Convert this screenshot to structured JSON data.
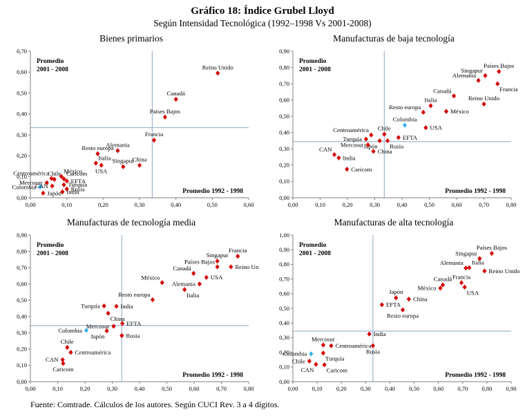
{
  "page": {
    "title": "Gráfico 18: Índice Grubel Lloyd",
    "subtitle": "Según Intensidad Tecnológica (1992–1998 Vs 2001-2008)",
    "footer": "Fuente: Comtrade. Cálculos de los autores. Según CUCI Rev. 3 a 4 dígitos."
  },
  "colors": {
    "point": "#d40000",
    "highlight_point": "#31b2e8",
    "refline": "#9fb4cc",
    "axis": "#7f7f7f",
    "text": "#000000"
  },
  "chart_data": [
    {
      "type": "scatter",
      "title": "Bienes primarios",
      "xlabel": "Promedio 1992 - 1998",
      "ylabel": "Promedio 2001 - 2008",
      "xlim": [
        0,
        0.6
      ],
      "ylim": [
        0,
        0.7
      ],
      "xtick_labels": [
        "0,00",
        "0,10",
        "0,20",
        "0,30",
        "0,40",
        "0,50",
        "0,60"
      ],
      "ytick_labels": [
        "0,00",
        "0,10",
        "0,20",
        "0,30",
        "0,40",
        "0,50",
        "0,60",
        "0,70"
      ],
      "refline_x": 0.335,
      "refline_y": 0.335,
      "legend": "none",
      "grid": false,
      "points": [
        {
          "name": "Reino Unido",
          "x": 0.515,
          "y": 0.595,
          "label_pos": "top"
        },
        {
          "name": "Canadá",
          "x": 0.4,
          "y": 0.47,
          "label_pos": "top"
        },
        {
          "name": "Países Bajos",
          "x": 0.37,
          "y": 0.385,
          "label_pos": "top"
        },
        {
          "name": "Francia",
          "x": 0.34,
          "y": 0.275,
          "label_pos": "top"
        },
        {
          "name": "Alemania",
          "x": 0.24,
          "y": 0.225,
          "label_pos": "top"
        },
        {
          "name": "Resto europa",
          "x": 0.185,
          "y": 0.21,
          "label_pos": "top"
        },
        {
          "name": "Italia",
          "x": 0.18,
          "y": 0.165,
          "label_pos": "top-right"
        },
        {
          "name": "USA",
          "x": 0.195,
          "y": 0.155,
          "label_pos": "bottom"
        },
        {
          "name": "Singapur",
          "x": 0.255,
          "y": 0.148,
          "label_pos": "top"
        },
        {
          "name": "China",
          "x": 0.3,
          "y": 0.155,
          "label_pos": "top"
        },
        {
          "name": "México",
          "x": 0.085,
          "y": 0.102,
          "label_pos": "top-right"
        },
        {
          "name": "Centroamérica",
          "x": 0.058,
          "y": 0.092,
          "label_pos": "top-left"
        },
        {
          "name": "Chile",
          "x": 0.066,
          "y": 0.088,
          "label_pos": "top"
        },
        {
          "name": "Caricom",
          "x": 0.092,
          "y": 0.09,
          "label_pos": "top-right"
        },
        {
          "name": "Mercosur",
          "x": 0.045,
          "y": 0.072,
          "label_pos": "left"
        },
        {
          "name": "EFTA",
          "x": 0.1,
          "y": 0.08,
          "label_pos": "right"
        },
        {
          "name": "Colombia",
          "x": 0.027,
          "y": 0.052,
          "label_pos": "left",
          "highlight": true
        },
        {
          "name": "CAN",
          "x": 0.06,
          "y": 0.056,
          "label_pos": "left"
        },
        {
          "name": "Turquía",
          "x": 0.092,
          "y": 0.062,
          "label_pos": "right"
        },
        {
          "name": "Rusia",
          "x": 0.1,
          "y": 0.042,
          "label_pos": "right"
        },
        {
          "name": "Japón",
          "x": 0.035,
          "y": 0.022,
          "label_pos": "right"
        },
        {
          "name": "India",
          "x": 0.088,
          "y": 0.028,
          "label_pos": "right"
        }
      ]
    },
    {
      "type": "scatter",
      "title": "Manufacturas de baja tecnología",
      "xlabel": "Promedio 1992 - 1998",
      "ylabel": "Promedio 2001 - 2008",
      "xlim": [
        0,
        0.8
      ],
      "ylim": [
        0,
        0.9
      ],
      "xtick_labels": [
        "0,00",
        "0,10",
        "0,20",
        "0,30",
        "0,40",
        "0,50",
        "0,60",
        "0,70",
        "0,80"
      ],
      "ytick_labels": [
        "0,00",
        "0,10",
        "0,20",
        "0,30",
        "0,40",
        "0,50",
        "0,60",
        "0,70",
        "0,80",
        "0,90"
      ],
      "refline_x": 0.335,
      "refline_y": 0.345,
      "legend": "none",
      "grid": false,
      "points": [
        {
          "name": "Países Bajos",
          "x": 0.755,
          "y": 0.775,
          "label_pos": "top"
        },
        {
          "name": "Singapur",
          "x": 0.705,
          "y": 0.75,
          "label_pos": "top-left"
        },
        {
          "name": "Alemania",
          "x": 0.68,
          "y": 0.72,
          "label_pos": "top-left"
        },
        {
          "name": "Francia",
          "x": 0.75,
          "y": 0.7,
          "label_pos": "bottom-right"
        },
        {
          "name": "Canadá",
          "x": 0.59,
          "y": 0.625,
          "label_pos": "top-left"
        },
        {
          "name": "Reino Unido",
          "x": 0.7,
          "y": 0.575,
          "label_pos": "top"
        },
        {
          "name": "Italia",
          "x": 0.505,
          "y": 0.565,
          "label_pos": "top"
        },
        {
          "name": "Resto europa",
          "x": 0.478,
          "y": 0.525,
          "label_pos": "top-left"
        },
        {
          "name": "México",
          "x": 0.562,
          "y": 0.53,
          "label_pos": "right"
        },
        {
          "name": "Colombia",
          "x": 0.41,
          "y": 0.445,
          "label_pos": "top",
          "highlight": true
        },
        {
          "name": "USA",
          "x": 0.487,
          "y": 0.43,
          "label_pos": "right"
        },
        {
          "name": "Chile",
          "x": 0.335,
          "y": 0.39,
          "label_pos": "top"
        },
        {
          "name": "EFTA",
          "x": 0.387,
          "y": 0.37,
          "label_pos": "right"
        },
        {
          "name": "Centroamérica",
          "x": 0.287,
          "y": 0.385,
          "label_pos": "top-left"
        },
        {
          "name": "Turquía",
          "x": 0.268,
          "y": 0.36,
          "label_pos": "left"
        },
        {
          "name": "Japón",
          "x": 0.318,
          "y": 0.35,
          "label_pos": "bottom-left"
        },
        {
          "name": "Rusia",
          "x": 0.347,
          "y": 0.35,
          "label_pos": "bottom-right"
        },
        {
          "name": "Mercosur",
          "x": 0.275,
          "y": 0.325,
          "label_pos": "left"
        },
        {
          "name": "China",
          "x": 0.295,
          "y": 0.285,
          "label_pos": "right"
        },
        {
          "name": "CAN",
          "x": 0.152,
          "y": 0.265,
          "label_pos": "top-left"
        },
        {
          "name": "India",
          "x": 0.168,
          "y": 0.245,
          "label_pos": "right"
        },
        {
          "name": "Caricom",
          "x": 0.198,
          "y": 0.175,
          "label_pos": "right"
        }
      ]
    },
    {
      "type": "scatter",
      "title": "Manufacturas de tecnología media",
      "xlabel": "Promedio 1992 - 1998",
      "ylabel": "Promedio 2001 - 2008",
      "xlim": [
        0,
        0.8
      ],
      "ylim": [
        0,
        0.9
      ],
      "xtick_labels": [
        "0,00",
        "0,10",
        "0,20",
        "0,30",
        "0,40",
        "0,50",
        "0,60",
        "0,70",
        "0,80"
      ],
      "ytick_labels": [
        "0,00",
        "0,10",
        "0,20",
        "0,30",
        "0,40",
        "0,50",
        "0,60",
        "0,70",
        "0,80",
        "0,90"
      ],
      "refline_x": 0.335,
      "refline_y": 0.345,
      "legend": "none",
      "grid": false,
      "points": [
        {
          "name": "Francia",
          "x": 0.76,
          "y": 0.77,
          "label_pos": "top"
        },
        {
          "name": "Singapur",
          "x": 0.685,
          "y": 0.74,
          "label_pos": "top"
        },
        {
          "name": "Países Bajos",
          "x": 0.685,
          "y": 0.705,
          "label_pos": "top-left"
        },
        {
          "name": "Reino Unido",
          "x": 0.735,
          "y": 0.705,
          "label_pos": "right"
        },
        {
          "name": "Canadá",
          "x": 0.598,
          "y": 0.665,
          "label_pos": "top-left"
        },
        {
          "name": "USA",
          "x": 0.645,
          "y": 0.64,
          "label_pos": "right"
        },
        {
          "name": "México",
          "x": 0.483,
          "y": 0.608,
          "label_pos": "top-left"
        },
        {
          "name": "Alemania",
          "x": 0.62,
          "y": 0.6,
          "label_pos": "left"
        },
        {
          "name": "Italia",
          "x": 0.565,
          "y": 0.565,
          "label_pos": "bottom-right"
        },
        {
          "name": "Resto europa",
          "x": 0.448,
          "y": 0.503,
          "label_pos": "top-left"
        },
        {
          "name": "Turquía",
          "x": 0.27,
          "y": 0.465,
          "label_pos": "left"
        },
        {
          "name": "India",
          "x": 0.315,
          "y": 0.463,
          "label_pos": "right"
        },
        {
          "name": "China",
          "x": 0.285,
          "y": 0.42,
          "label_pos": "bottom-right"
        },
        {
          "name": "EFTA",
          "x": 0.337,
          "y": 0.357,
          "label_pos": "right"
        },
        {
          "name": "Mercosur",
          "x": 0.305,
          "y": 0.34,
          "label_pos": "left"
        },
        {
          "name": "Colombia",
          "x": 0.205,
          "y": 0.315,
          "label_pos": "left",
          "highlight": true
        },
        {
          "name": "Japón",
          "x": 0.28,
          "y": 0.312,
          "label_pos": "bottom-left"
        },
        {
          "name": "Rusia",
          "x": 0.335,
          "y": 0.283,
          "label_pos": "right"
        },
        {
          "name": "Chile",
          "x": 0.135,
          "y": 0.21,
          "label_pos": "top"
        },
        {
          "name": "Centroamérica",
          "x": 0.148,
          "y": 0.18,
          "label_pos": "right"
        },
        {
          "name": "CAN",
          "x": 0.118,
          "y": 0.135,
          "label_pos": "left"
        },
        {
          "name": "Caricom",
          "x": 0.12,
          "y": 0.112,
          "label_pos": "bottom"
        }
      ]
    },
    {
      "type": "scatter",
      "title": "Manufacturas de alta tecnología",
      "xlabel": "Promedio 1992 - 1998",
      "ylabel": "Promedio 2001 - 2008",
      "xlim": [
        0,
        0.9
      ],
      "ylim": [
        0,
        1.0
      ],
      "xtick_labels": [
        "0,00",
        "0,10",
        "0,20",
        "0,30",
        "0,40",
        "0,50",
        "0,60",
        "0,70",
        "0,80",
        "0,90"
      ],
      "ytick_labels": [
        "0,00",
        "0,10",
        "0,20",
        "0,30",
        "0,40",
        "0,50",
        "0,60",
        "0,70",
        "0,80",
        "0,90",
        "1,00"
      ],
      "refline_x": 0.33,
      "refline_y": 0.345,
      "legend": "none",
      "grid": false,
      "points": [
        {
          "name": "Países Bajos",
          "x": 0.82,
          "y": 0.875,
          "label_pos": "top"
        },
        {
          "name": "Singapur",
          "x": 0.77,
          "y": 0.84,
          "label_pos": "top-left"
        },
        {
          "name": "Alemania",
          "x": 0.713,
          "y": 0.775,
          "label_pos": "top-left"
        },
        {
          "name": "Italia",
          "x": 0.727,
          "y": 0.778,
          "label_pos": "top-right"
        },
        {
          "name": "Reino Unido",
          "x": 0.79,
          "y": 0.755,
          "label_pos": "right"
        },
        {
          "name": "Francia",
          "x": 0.695,
          "y": 0.675,
          "label_pos": "top"
        },
        {
          "name": "Canadá",
          "x": 0.618,
          "y": 0.66,
          "label_pos": "top"
        },
        {
          "name": "USA",
          "x": 0.708,
          "y": 0.645,
          "label_pos": "bottom-right"
        },
        {
          "name": "México",
          "x": 0.608,
          "y": 0.638,
          "label_pos": "left"
        },
        {
          "name": "Japón",
          "x": 0.425,
          "y": 0.572,
          "label_pos": "top"
        },
        {
          "name": "China",
          "x": 0.478,
          "y": 0.563,
          "label_pos": "right"
        },
        {
          "name": "EFTA",
          "x": 0.367,
          "y": 0.525,
          "label_pos": "right"
        },
        {
          "name": "Resto europa",
          "x": 0.453,
          "y": 0.49,
          "label_pos": "bottom"
        },
        {
          "name": "India",
          "x": 0.315,
          "y": 0.325,
          "label_pos": "right"
        },
        {
          "name": "Rusia",
          "x": 0.33,
          "y": 0.245,
          "label_pos": "bottom"
        },
        {
          "name": "Mercosur",
          "x": 0.125,
          "y": 0.25,
          "label_pos": "top"
        },
        {
          "name": "Centroamérica",
          "x": 0.158,
          "y": 0.245,
          "label_pos": "right"
        },
        {
          "name": "Colombia",
          "x": 0.075,
          "y": 0.19,
          "label_pos": "left",
          "highlight": true
        },
        {
          "name": "Turquía",
          "x": 0.125,
          "y": 0.195,
          "label_pos": "bottom-right"
        },
        {
          "name": "Chile",
          "x": 0.068,
          "y": 0.14,
          "label_pos": "left"
        },
        {
          "name": "CAN",
          "x": 0.095,
          "y": 0.118,
          "label_pos": "bottom-left"
        },
        {
          "name": "Caricom",
          "x": 0.13,
          "y": 0.115,
          "label_pos": "bottom-right"
        }
      ]
    }
  ]
}
